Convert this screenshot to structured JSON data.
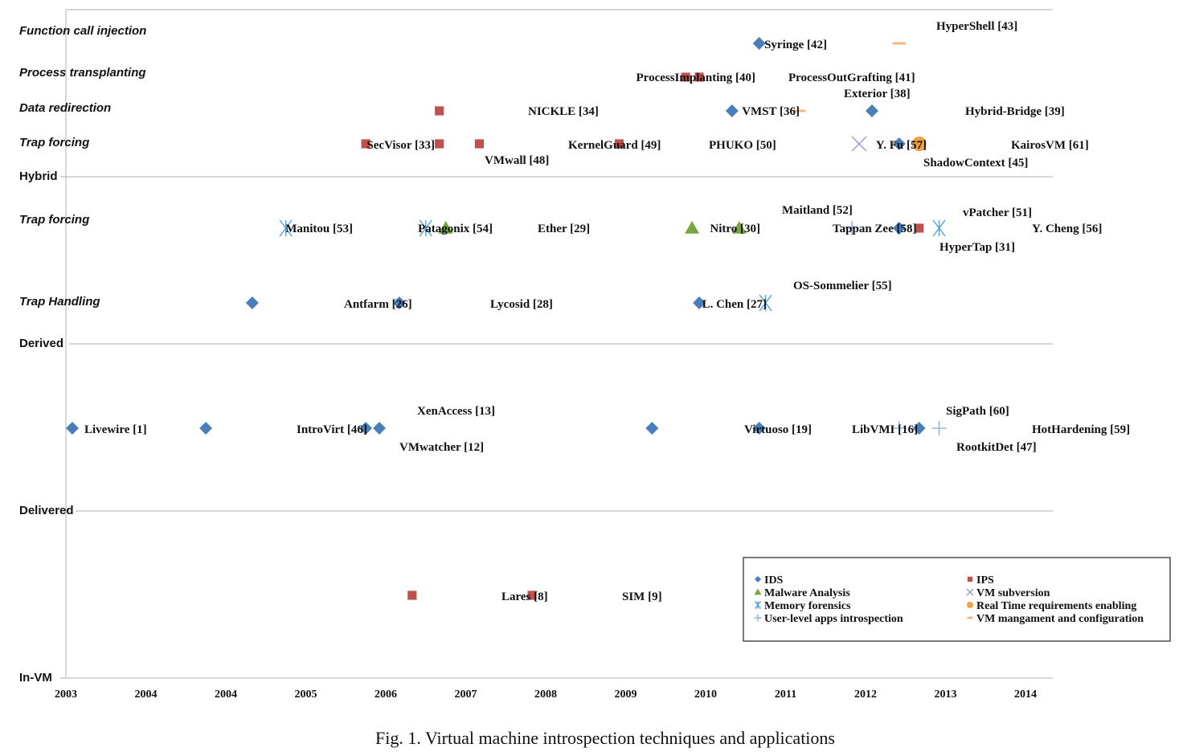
{
  "chart_data": {
    "type": "scatter",
    "x_ticks": [
      "2003",
      "2004",
      "2004",
      "2005",
      "2006",
      "2007",
      "2008",
      "2009",
      "2010",
      "2011",
      "2012",
      "2013",
      "2014"
    ],
    "bands": [
      {
        "key": "hybrid",
        "label": "Hybrid"
      },
      {
        "key": "derived",
        "label": "Derived"
      },
      {
        "key": "delivered",
        "label": "Delivered"
      },
      {
        "key": "invm",
        "label": "In-VM"
      }
    ],
    "rows": [
      {
        "key": "fci",
        "label": "Function call injection"
      },
      {
        "key": "pt",
        "label": "Process transplanting"
      },
      {
        "key": "dr",
        "label": "Data redirection"
      },
      {
        "key": "tfh",
        "label": "Trap forcing"
      },
      {
        "key": "tfd",
        "label": "Trap forcing"
      },
      {
        "key": "th",
        "label": "Trap Handling"
      },
      {
        "key": "del",
        "label": ""
      },
      {
        "key": "invm",
        "label": ""
      }
    ],
    "categories": [
      {
        "key": "ids",
        "label": "IDS",
        "marker": "diamond",
        "color": "#4a7ebb"
      },
      {
        "key": "ips",
        "label": "IPS",
        "marker": "square",
        "color": "#c0504d"
      },
      {
        "key": "malware",
        "label": "Malware Analysis",
        "marker": "triangle",
        "color": "#77a640"
      },
      {
        "key": "vmsub",
        "label": "VM subversion",
        "marker": "x",
        "color": "#9a9ac8"
      },
      {
        "key": "memfor",
        "label": "Memory forensics",
        "marker": "star",
        "color": "#4ba3d9"
      },
      {
        "key": "rt",
        "label": "Real Time requirements enabling",
        "marker": "circle",
        "color": "#f0a040"
      },
      {
        "key": "userlevel",
        "label": "User-level apps introspection",
        "marker": "plus",
        "color": "#9ab3e0"
      },
      {
        "key": "vmmgmt",
        "label": "VM mangament and configuration",
        "marker": "dash",
        "color": "#f5b880"
      }
    ],
    "points": [
      {
        "label": "Syringe [42]",
        "row": "fci",
        "x": 2011.67,
        "cat": "ids"
      },
      {
        "label": "HyperShell [43]",
        "row": "fci",
        "x": 2013.42,
        "cat": "vmmgmt"
      },
      {
        "label": "ProcessImplanting [40]",
        "row": "pt",
        "x": 2010.75,
        "cat": "ips"
      },
      {
        "label": "ProcessOutGrafting [41]",
        "row": "pt",
        "x": 2010.92,
        "cat": "ips"
      },
      {
        "label": "NICKLE [34]",
        "row": "dr",
        "x": 2007.67,
        "cat": "ips"
      },
      {
        "label": "VMST [36]",
        "row": "dr",
        "x": 2011.33,
        "cat": "ids"
      },
      {
        "label": "Exterior [38]",
        "row": "dr",
        "x": 2012.17,
        "cat": "vmmgmt"
      },
      {
        "label": "Hybrid-Bridge [39]",
        "row": "dr",
        "x": 2013.08,
        "cat": "ids"
      },
      {
        "label": "SecVisor [33]",
        "row": "tfh",
        "x": 2006.75,
        "cat": "ips"
      },
      {
        "label": "VMwall [48]",
        "row": "tfh",
        "x": 2007.67,
        "cat": "ips"
      },
      {
        "label": "KernelGuard [49]",
        "row": "tfh",
        "x": 2008.17,
        "cat": "ips"
      },
      {
        "label": "PHUKO [50]",
        "row": "tfh",
        "x": 2009.92,
        "cat": "ips"
      },
      {
        "label": "Y. Fu [57]",
        "row": "tfh",
        "x": 2012.92,
        "cat": "vmsub"
      },
      {
        "label": "ShadowContext [45]",
        "row": "tfh",
        "x": 2013.42,
        "cat": "ids"
      },
      {
        "label": "KairosVM [61]",
        "row": "tfh",
        "x": 2013.67,
        "cat": "rt"
      },
      {
        "label": "Manitou [53]",
        "row": "tfd",
        "x": 2005.75,
        "cat": "memfor"
      },
      {
        "label": "Patagonix [54]",
        "row": "tfd",
        "x": 2007.5,
        "cat": "memfor"
      },
      {
        "label": "Ether [29]",
        "row": "tfd",
        "x": 2007.75,
        "cat": "malware"
      },
      {
        "label": "Nitro [30]",
        "row": "tfd",
        "x": 2010.83,
        "cat": "malware"
      },
      {
        "label": "Maitland [52]",
        "row": "tfd",
        "x": 2011.42,
        "cat": "malware"
      },
      {
        "label": "Tappan Zee [58]",
        "row": "tfd",
        "x": 2012.83,
        "cat": "userlevel"
      },
      {
        "label": "HyperTap [31]",
        "row": "tfd",
        "x": 2013.42,
        "cat": "ids"
      },
      {
        "label": "vPatcher [51]",
        "row": "tfd",
        "x": 2013.67,
        "cat": "ips"
      },
      {
        "label": "Y. Cheng [56]",
        "row": "tfd",
        "x": 2013.92,
        "cat": "memfor"
      },
      {
        "label": "Antfarm [26]",
        "row": "th",
        "x": 2005.33,
        "cat": "ids"
      },
      {
        "label": "Lycosid [28]",
        "row": "th",
        "x": 2007.17,
        "cat": "ids"
      },
      {
        "label": "L. Chen [27]",
        "row": "th",
        "x": 2010.92,
        "cat": "ids"
      },
      {
        "label": "OS-Sommelier [55]",
        "row": "th",
        "x": 2011.75,
        "cat": "memfor"
      },
      {
        "label": "Livewire [1]",
        "row": "del",
        "x": 2003.08,
        "cat": "ids"
      },
      {
        "label": "IntroVirt [46]",
        "row": "del",
        "x": 2004.75,
        "cat": "ids"
      },
      {
        "label": "VMwatcher [12]",
        "row": "del",
        "x": 2006.75,
        "cat": "ids"
      },
      {
        "label": "XenAccess [13]",
        "row": "del",
        "x": 2006.92,
        "cat": "ids"
      },
      {
        "label": "Virtuoso [19]",
        "row": "del",
        "x": 2010.33,
        "cat": "ids"
      },
      {
        "label": "LibVMI [16]",
        "row": "del",
        "x": 2011.67,
        "cat": "ids"
      },
      {
        "label": "SigPath [60]",
        "row": "del",
        "x": 2013.42,
        "cat": "userlevel"
      },
      {
        "label": "RootkitDet [47]",
        "row": "del",
        "x": 2013.67,
        "cat": "ids"
      },
      {
        "label": "HotHardening [59]",
        "row": "del",
        "x": 2013.92,
        "cat": "userlevel"
      },
      {
        "label": "Lares [8]",
        "row": "invm",
        "x": 2007.33,
        "cat": "ips"
      },
      {
        "label": "SIM [9]",
        "row": "invm",
        "x": 2008.83,
        "cat": "ips"
      }
    ]
  },
  "caption": "Fig. 1.    Virtual machine introspection techniques and applications"
}
